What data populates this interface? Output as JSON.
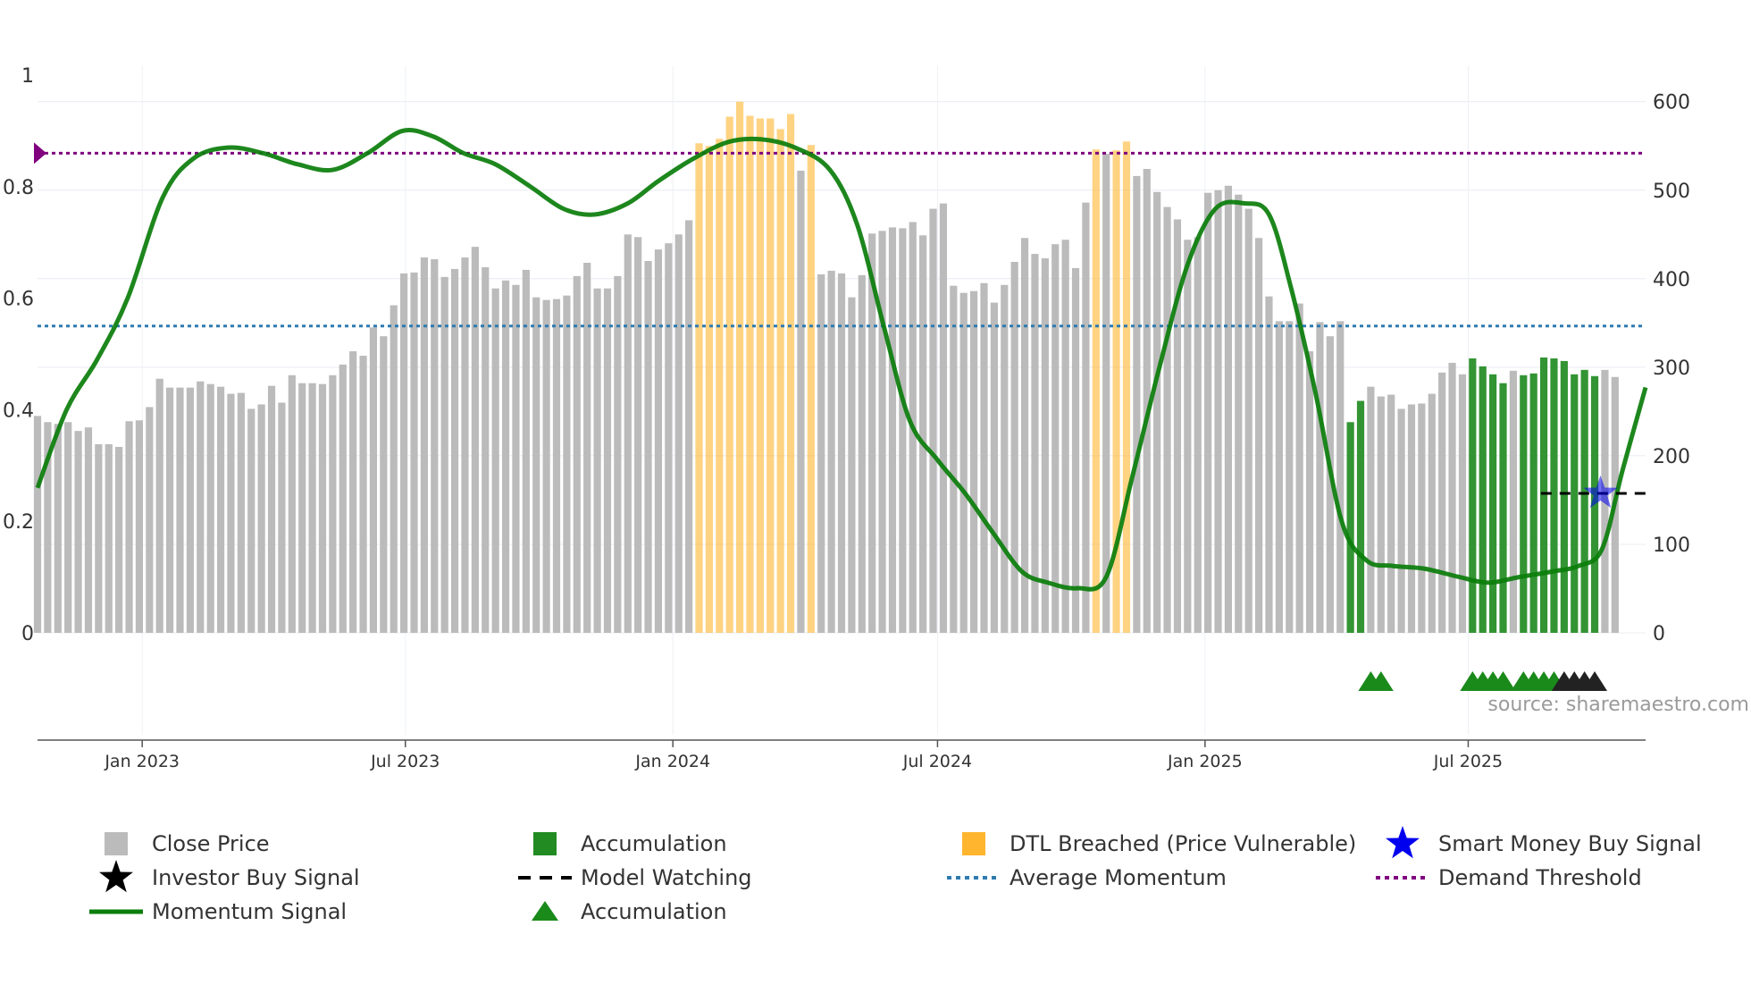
{
  "chart_data": {
    "type": "bar",
    "title": "",
    "source_label": "source: sharemaestro.com",
    "x_axis": {
      "type": "date",
      "range": [
        "2022-10-21",
        "2025-10-31"
      ],
      "ticks": [
        {
          "date": "2023-01-01",
          "label": "Jan 2023"
        },
        {
          "date": "2023-07-01",
          "label": "Jul 2023"
        },
        {
          "date": "2024-01-01",
          "label": "Jan 2024"
        },
        {
          "date": "2024-07-01",
          "label": "Jul 2024"
        },
        {
          "date": "2025-01-01",
          "label": "Jan 2025"
        },
        {
          "date": "2025-07-01",
          "label": "Jul 2025"
        }
      ]
    },
    "y_left": {
      "range": [
        0,
        1
      ],
      "ticks": [
        0,
        0.2,
        0.4,
        0.6,
        0.8,
        1
      ],
      "tick_labels": [
        "0",
        "0.2",
        "0.4",
        "0.6",
        "0.8",
        "1"
      ]
    },
    "y_right": {
      "range": [
        0,
        630
      ],
      "ticks": [
        0,
        100,
        200,
        300,
        400,
        500,
        600
      ],
      "tick_labels": [
        "0",
        "100",
        "200",
        "300",
        "400",
        "500",
        "600"
      ]
    },
    "bars": {
      "start_date": "2022-10-21",
      "step_days": 7,
      "values": [
        245,
        238,
        236,
        238,
        228,
        232,
        213,
        213,
        210,
        239,
        240,
        255,
        287,
        277,
        277,
        277,
        284,
        281,
        278,
        270,
        271,
        253,
        258,
        279,
        260,
        291,
        282,
        282,
        281,
        291,
        303,
        318,
        313,
        345,
        335,
        370,
        406,
        407,
        424,
        422,
        402,
        411,
        424,
        436,
        413,
        389,
        398,
        393,
        410,
        379,
        376,
        377,
        381,
        403,
        418,
        389,
        389,
        403,
        450,
        447,
        420,
        433,
        440,
        450,
        466,
        553,
        550,
        558,
        583,
        600,
        584,
        581,
        581,
        569,
        586,
        522,
        551,
        405,
        409,
        406,
        379,
        404,
        451,
        454,
        458,
        457,
        464,
        449,
        479,
        485,
        392,
        384,
        386,
        395,
        373,
        393,
        419,
        446,
        428,
        423,
        439,
        444,
        412,
        486,
        546,
        541,
        545,
        555,
        516,
        524,
        498,
        481,
        467,
        444,
        447,
        497,
        500,
        505,
        495,
        479,
        446,
        380,
        352,
        352,
        372,
        318,
        351,
        335,
        352,
        238,
        262,
        278,
        267,
        269,
        253,
        258,
        259,
        270,
        294,
        305,
        292,
        310,
        301,
        292,
        282,
        296,
        291,
        293,
        311,
        310,
        307,
        292,
        297,
        290,
        297,
        289
      ],
      "colors": [
        "g",
        "g",
        "g",
        "g",
        "g",
        "g",
        "g",
        "g",
        "g",
        "g",
        "g",
        "g",
        "g",
        "g",
        "g",
        "g",
        "g",
        "g",
        "g",
        "g",
        "g",
        "g",
        "g",
        "g",
        "g",
        "g",
        "g",
        "g",
        "g",
        "g",
        "g",
        "g",
        "g",
        "g",
        "g",
        "g",
        "g",
        "g",
        "g",
        "g",
        "g",
        "g",
        "g",
        "g",
        "g",
        "g",
        "g",
        "g",
        "g",
        "g",
        "g",
        "g",
        "g",
        "g",
        "g",
        "g",
        "g",
        "g",
        "g",
        "g",
        "g",
        "g",
        "g",
        "g",
        "g",
        "o",
        "o",
        "o",
        "o",
        "o",
        "o",
        "o",
        "o",
        "o",
        "o",
        "g",
        "o",
        "g",
        "g",
        "g",
        "g",
        "g",
        "g",
        "g",
        "g",
        "g",
        "g",
        "g",
        "g",
        "g",
        "g",
        "g",
        "g",
        "g",
        "g",
        "g",
        "g",
        "g",
        "g",
        "g",
        "g",
        "g",
        "g",
        "g",
        "o",
        "g",
        "o",
        "o",
        "g",
        "g",
        "g",
        "g",
        "g",
        "g",
        "g",
        "g",
        "g",
        "g",
        "g",
        "g",
        "g",
        "g",
        "g",
        "g",
        "g",
        "g",
        "g",
        "g",
        "g",
        "G",
        "G",
        "g",
        "g",
        "g",
        "g",
        "g",
        "g",
        "g",
        "g",
        "g",
        "g",
        "G",
        "G",
        "G",
        "G",
        "g",
        "G",
        "G",
        "G",
        "G",
        "G",
        "G",
        "G",
        "G",
        "g",
        "g"
      ]
    },
    "series": [
      {
        "name": "Close Price",
        "kind": "bar",
        "color": "#bbbbbb"
      },
      {
        "name": "Accumulation",
        "kind": "bar",
        "color": "#228b22"
      },
      {
        "name": "DTL Breached (Price Vulnerable)",
        "kind": "bar",
        "color": "#ffb52e"
      },
      {
        "name": "Momentum Signal",
        "kind": "line",
        "color": "#0a7d0a",
        "dates": [
          "2022-10-21",
          "2022-11-10",
          "2022-12-01",
          "2022-12-22",
          "2023-01-15",
          "2023-02-05",
          "2023-03-01",
          "2023-03-25",
          "2023-04-18",
          "2023-05-12",
          "2023-06-05",
          "2023-06-29",
          "2023-07-20",
          "2023-08-10",
          "2023-09-01",
          "2023-09-25",
          "2023-10-18",
          "2023-11-08",
          "2023-12-01",
          "2023-12-22",
          "2024-01-15",
          "2024-02-08",
          "2024-03-01",
          "2024-03-25",
          "2024-04-18",
          "2024-05-07",
          "2024-05-25",
          "2024-06-12",
          "2024-07-01",
          "2024-07-20",
          "2024-08-08",
          "2024-08-28",
          "2024-09-15",
          "2024-10-05",
          "2024-10-25",
          "2024-11-12",
          "2024-12-01",
          "2024-12-20",
          "2025-01-08",
          "2025-01-28",
          "2025-02-14",
          "2025-03-01",
          "2025-03-18",
          "2025-04-05",
          "2025-04-22",
          "2025-05-10",
          "2025-06-01",
          "2025-06-25",
          "2025-07-15",
          "2025-08-05",
          "2025-08-28",
          "2025-09-15",
          "2025-10-01",
          "2025-10-15",
          "2025-10-31"
        ],
        "values": [
          0.26,
          0.4,
          0.49,
          0.6,
          0.78,
          0.85,
          0.87,
          0.86,
          0.84,
          0.83,
          0.86,
          0.9,
          0.89,
          0.86,
          0.84,
          0.8,
          0.76,
          0.75,
          0.77,
          0.81,
          0.85,
          0.88,
          0.885,
          0.87,
          0.83,
          0.73,
          0.55,
          0.38,
          0.31,
          0.25,
          0.18,
          0.11,
          0.09,
          0.08,
          0.1,
          0.28,
          0.48,
          0.66,
          0.76,
          0.77,
          0.75,
          0.62,
          0.43,
          0.2,
          0.13,
          0.12,
          0.115,
          0.1,
          0.09,
          0.1,
          0.11,
          0.12,
          0.15,
          0.29,
          0.44
        ]
      },
      {
        "name": "Average Momentum",
        "kind": "hline",
        "color": "#2e7bb0",
        "value": 0.55
      },
      {
        "name": "Demand Threshold",
        "kind": "hline",
        "color": "#800080",
        "value": 0.86
      },
      {
        "name": "Model Watching",
        "kind": "dashed",
        "color": "#000000",
        "start": "2025-08-20",
        "end": "2025-10-31",
        "value": 0.25
      },
      {
        "name": "Smart Money Buy Signal",
        "kind": "marker",
        "color": "#0000ee",
        "date": "2025-09-30",
        "value": 0.25
      },
      {
        "name": "Accumulation markers",
        "kind": "triangles",
        "color": "#1a8a1a",
        "dates": [
          "2025-04-25",
          "2025-05-02",
          "2025-07-04",
          "2025-07-11",
          "2025-07-18",
          "2025-07-25",
          "2025-08-08",
          "2025-08-15",
          "2025-08-22",
          "2025-08-29"
        ]
      },
      {
        "name": "Investor Buy Signal markers",
        "kind": "triangles",
        "color": "#222222",
        "dates": [
          "2025-09-05",
          "2025-09-12",
          "2025-09-19",
          "2025-09-26"
        ]
      }
    ],
    "edge_marker": {
      "name": "Demand Threshold start marker",
      "color": "#800080",
      "value": 0.86
    }
  },
  "legend": [
    {
      "label": "Close Price",
      "icon": "square-icon",
      "color": "#bbbbbb"
    },
    {
      "label": "Accumulation",
      "icon": "square-icon",
      "color": "#228b22"
    },
    {
      "label": "DTL Breached (Price Vulnerable)",
      "icon": "square-icon",
      "color": "#ffb52e"
    },
    {
      "label": "Smart Money Buy Signal",
      "icon": "star-icon",
      "color": "#0000ee"
    },
    {
      "label": "Investor Buy Signal",
      "icon": "star-icon",
      "color": "#000000"
    },
    {
      "label": "Model Watching",
      "icon": "dashed-line-icon",
      "color": "#000000"
    },
    {
      "label": "Average Momentum",
      "icon": "dotted-line-icon",
      "color": "#2e7bb0"
    },
    {
      "label": "Demand Threshold",
      "icon": "dotted-line-icon",
      "color": "#800080"
    },
    {
      "label": "Momentum Signal",
      "icon": "line-icon",
      "color": "#0a7d0a"
    },
    {
      "label": "Accumulation",
      "icon": "triangle-icon",
      "color": "#1a8a1a"
    }
  ]
}
